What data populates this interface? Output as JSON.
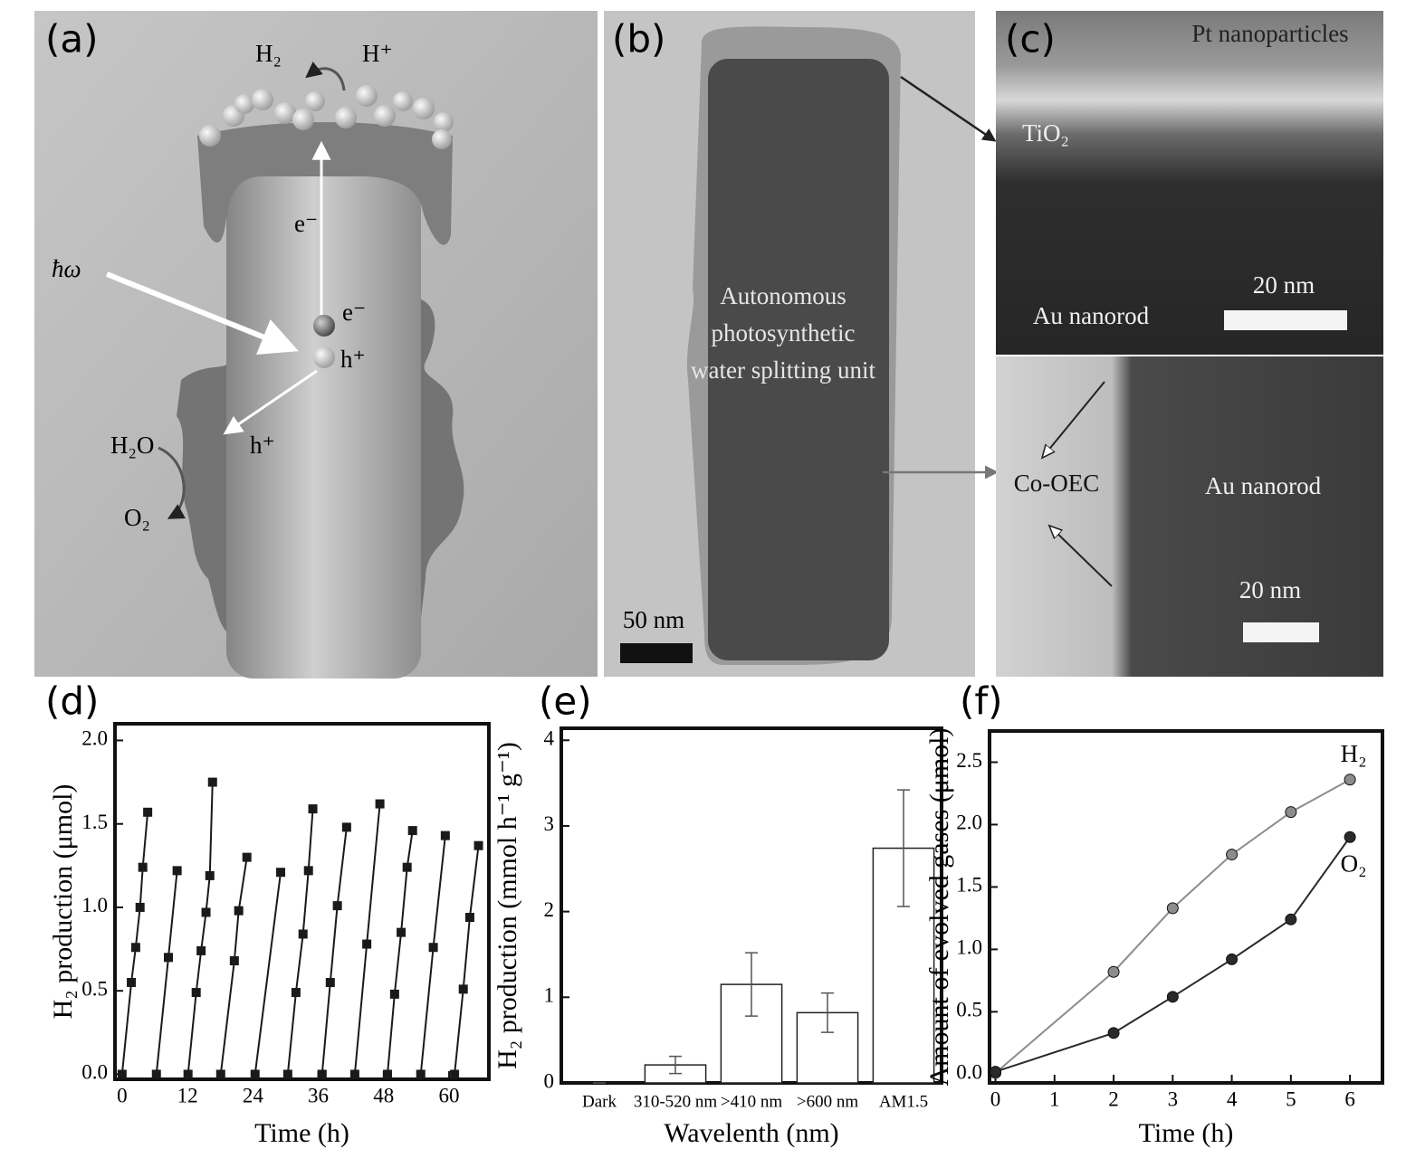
{
  "panel_a": {
    "label": "(a)",
    "h2": "H₂",
    "h_plus": "H⁺",
    "e_minus_path": "e⁻",
    "photon": "ħω",
    "e_minus": "e⁻",
    "h_plus_center": "h⁺",
    "h_plus_lower": "h⁺",
    "water": "H₂O",
    "oxygen": "O₂"
  },
  "panel_b": {
    "label": "(b)",
    "caption": [
      "Autonomous",
      "photosynthetic",
      "water splitting unit"
    ],
    "scale": "50 nm"
  },
  "panel_c": {
    "label": "(c)",
    "pt": "Pt nanoparticles",
    "tio2": "TiO₂",
    "scale_top": "20 nm",
    "rod_top": "Au nanorod",
    "co_oec": "Co-OEC",
    "rod_bottom": "Au nanorod",
    "scale_bottom": "20 nm"
  },
  "chart_data": [
    {
      "type": "line",
      "marker": "square",
      "panel_label": "(d)",
      "x_label": "Time (h)",
      "y_label": "H₂ production (μmol)",
      "color": "#1a1a1a",
      "x": [
        0,
        1.7,
        2.5,
        3.3,
        3.8,
        4.7,
        null,
        6.3,
        8.5,
        10.1,
        null,
        12.1,
        13.6,
        14.5,
        15.4,
        16.1,
        16.6,
        null,
        18.1,
        20.6,
        21.4,
        22.9,
        null,
        24.4,
        29.1,
        null,
        30.4,
        31.9,
        33.2,
        34.2,
        35.0,
        null,
        36.7,
        38.2,
        39.5,
        41.2,
        null,
        42.7,
        44.9,
        47.3,
        null,
        48.7,
        50.0,
        51.2,
        52.3,
        53.3,
        null,
        54.8,
        57.1,
        59.3,
        null,
        61.0,
        62.6,
        63.8,
        65.4
      ],
      "values": [
        0,
        0.55,
        0.76,
        1.0,
        1.24,
        1.57,
        null,
        0,
        0.7,
        1.22,
        null,
        0,
        0.49,
        0.74,
        0.97,
        1.19,
        1.75,
        null,
        0,
        0.68,
        0.98,
        1.3,
        null,
        0,
        1.21,
        null,
        0,
        0.49,
        0.84,
        1.22,
        1.59,
        null,
        0,
        0.55,
        1.01,
        1.48,
        null,
        0,
        0.78,
        1.62,
        null,
        0,
        0.48,
        0.85,
        1.24,
        1.46,
        null,
        0,
        0.76,
        1.43,
        null,
        0,
        0.51,
        0.94,
        1.37
      ],
      "xlim": [
        -1.3,
        67.3
      ],
      "xticks": [
        0,
        12,
        24,
        36,
        48,
        60
      ],
      "ylim": [
        -0.03,
        2.1
      ],
      "yticks": [
        {
          "value": 0,
          "label": "0.0"
        },
        {
          "value": 0.5,
          "label": "0.5"
        },
        {
          "value": 1,
          "label": "1.0"
        },
        {
          "value": 1.5,
          "label": "1.5"
        },
        {
          "value": 2,
          "label": "2.0"
        }
      ]
    },
    {
      "type": "bar",
      "panel_label": "(e)",
      "x_label": "Wavelenth (nm)",
      "y_label": "H₂ production (mmol h⁻¹ g⁻¹)",
      "color": "#ffffff",
      "categories": [
        "Dark",
        "310-520 nm",
        ">410 nm",
        ">600 nm",
        "AM1.5"
      ],
      "values": [
        0,
        0.21,
        1.15,
        0.82,
        2.74
      ],
      "errors": [
        0,
        0.1,
        0.37,
        0.23,
        0.68
      ],
      "ylim": [
        0,
        4.14
      ],
      "yticks": [
        0,
        1,
        2,
        3,
        4
      ]
    },
    {
      "type": "line",
      "marker": "circle",
      "panel_label": "(f)",
      "x_label": "Time (h)",
      "y_label": "Amount of evolved gases (μmol)",
      "x": [
        0,
        2,
        3,
        4,
        5,
        6
      ],
      "series": [
        {
          "name": "H₂",
          "color": "#8c8c8c",
          "values": [
            0.01,
            0.82,
            1.33,
            1.76,
            2.1,
            2.36
          ]
        },
        {
          "name": "O₂",
          "color": "#2a2a2a",
          "values": [
            0.02,
            0.33,
            0.62,
            0.92,
            1.24,
            1.9
          ]
        }
      ],
      "xlim": [
        -0.1,
        6.55
      ],
      "xticks": [
        0,
        1,
        2,
        3,
        4,
        5,
        6
      ],
      "ylim": [
        -0.07,
        2.75
      ],
      "yticks": [
        {
          "value": 0,
          "label": "0.0"
        },
        {
          "value": 0.5,
          "label": "0.5"
        },
        {
          "value": 1,
          "label": "1.0"
        },
        {
          "value": 1.5,
          "label": "1.5"
        },
        {
          "value": 2,
          "label": "2.0"
        },
        {
          "value": 2.5,
          "label": "2.5"
        }
      ]
    }
  ]
}
